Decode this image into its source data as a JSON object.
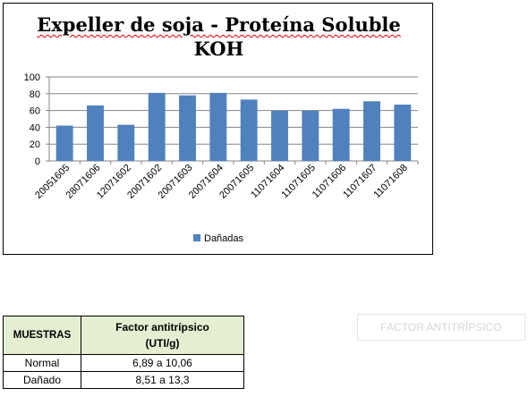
{
  "chart_data": {
    "type": "bar",
    "title_line1": "Expeller de soja - Proteína Soluble",
    "title_line2": "KOH",
    "categories": [
      "20051605",
      "28071606",
      "12071602",
      "20071602",
      "20071603",
      "20071604",
      "20071605",
      "11071604",
      "11071605",
      "11071606",
      "11071607",
      "11071608"
    ],
    "series": [
      {
        "name": "Dañadas",
        "values": [
          42,
          66,
          43,
          81,
          78,
          81,
          73,
          60,
          60,
          62,
          71,
          67
        ]
      }
    ],
    "ylim": [
      0,
      100
    ],
    "yticks": [
      0,
      20,
      40,
      60,
      80,
      100
    ],
    "grid": true,
    "legend_position": "bottom",
    "bar_color": "#4f81bd",
    "grid_color": "#868686"
  },
  "table": {
    "header_muestras": "MUESTRAS",
    "header_factor_line1": "Factor antitrípsico",
    "header_factor_line2": "(UTI/g)",
    "rows": [
      {
        "label": "Normal",
        "value": "6,89 a 10,06"
      },
      {
        "label": "Dañado",
        "value": "8,51 a 13,3"
      }
    ]
  },
  "button": {
    "label": "FACTOR ANTITRÍPSICO"
  }
}
